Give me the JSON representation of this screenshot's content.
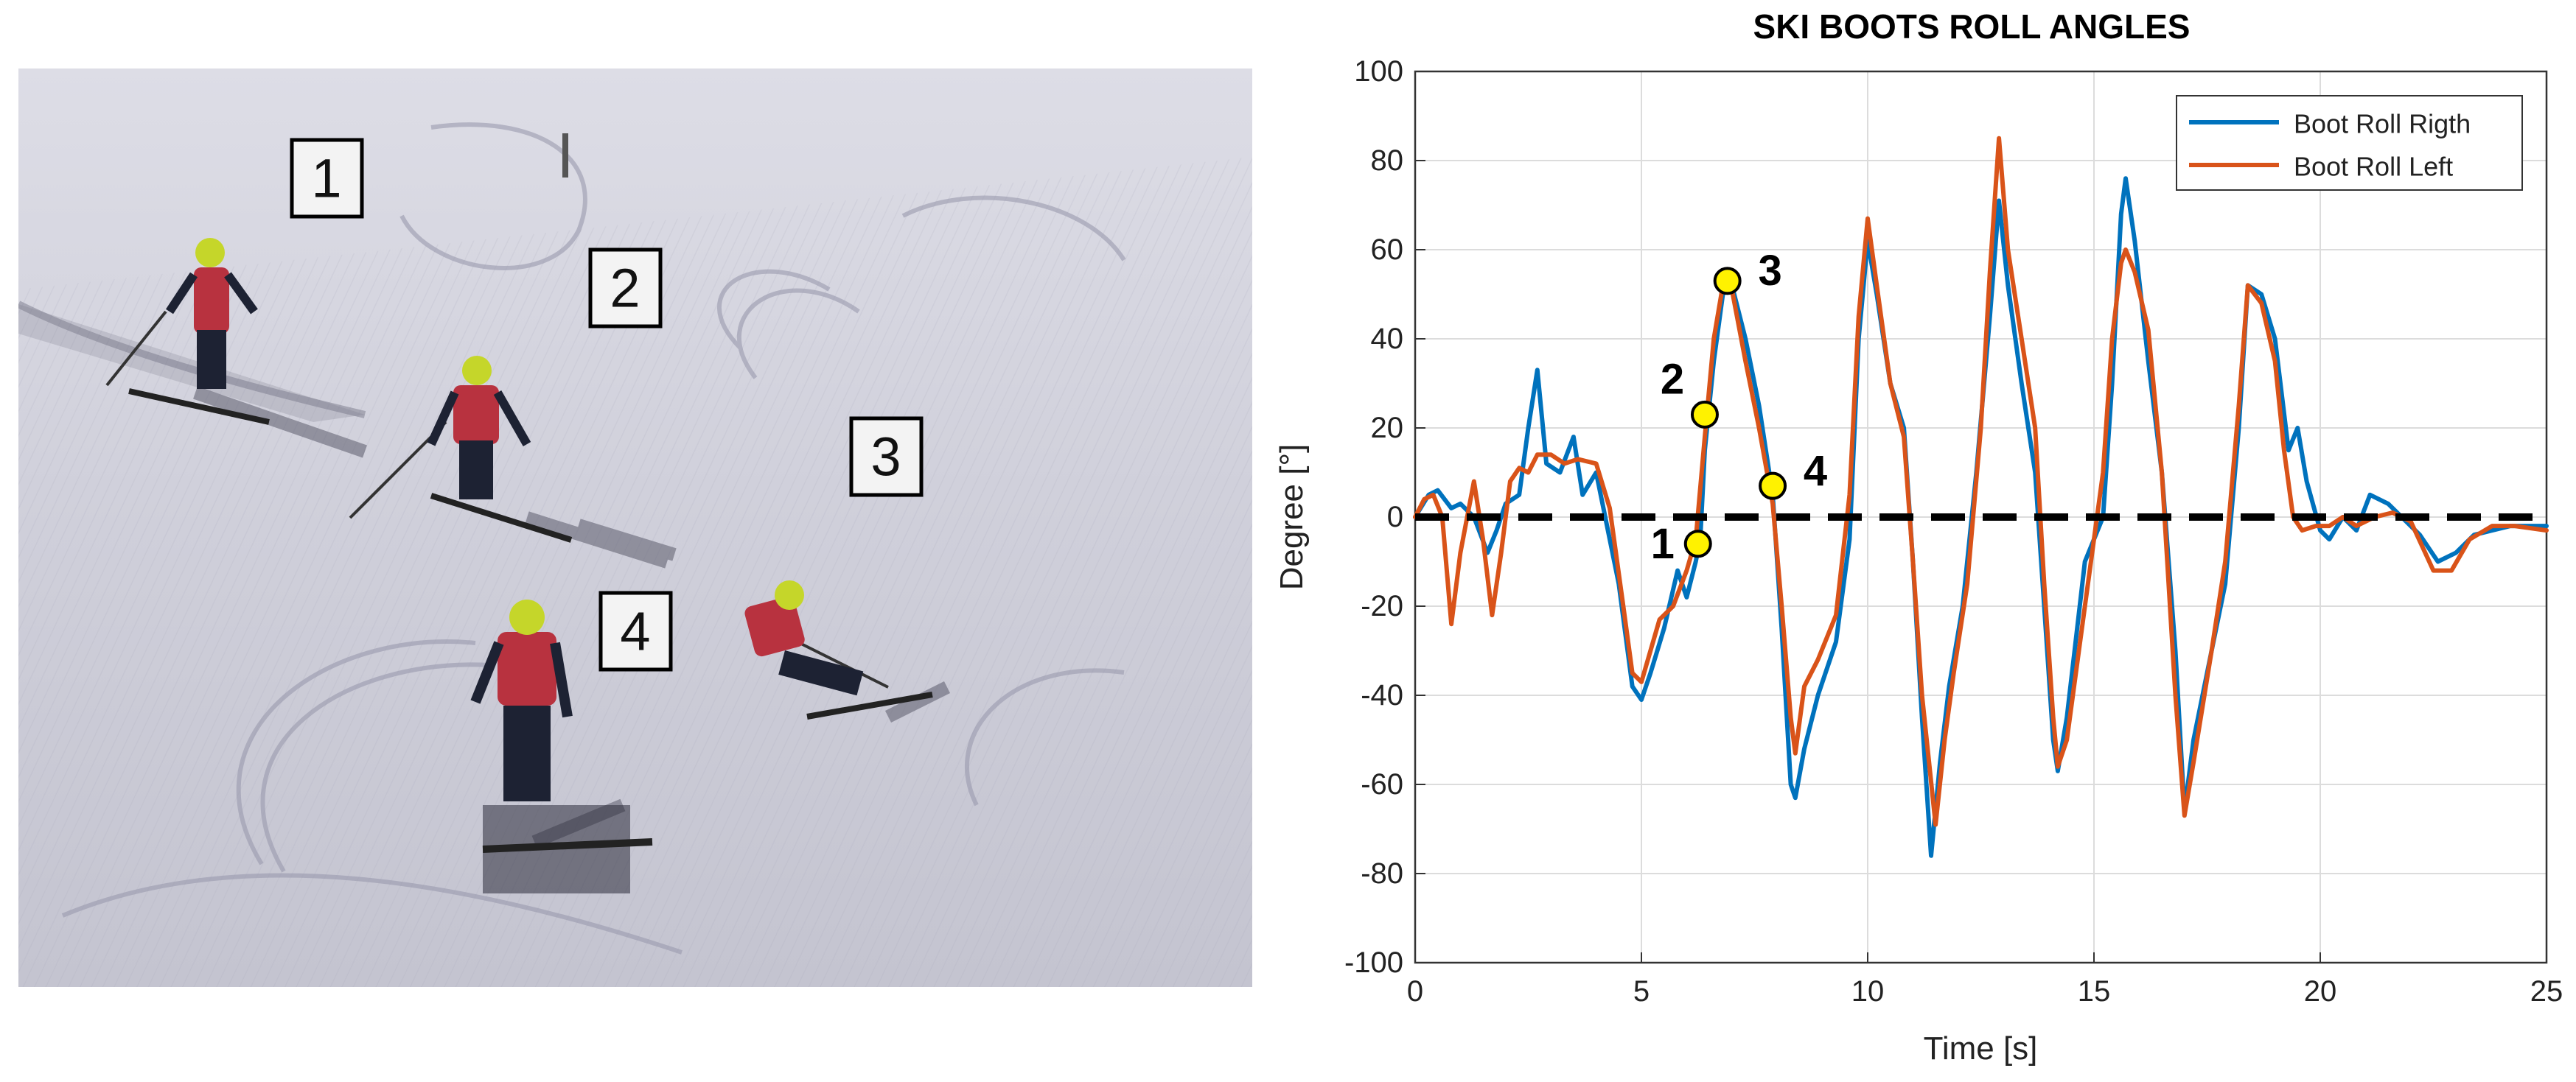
{
  "photo": {
    "markers": [
      {
        "label": "1"
      },
      {
        "label": "2"
      },
      {
        "label": "3"
      },
      {
        "label": "4"
      }
    ]
  },
  "chart_data": {
    "type": "line",
    "title": "SKI BOOTS ROLL ANGLES",
    "xlabel": "Time [s]",
    "ylabel": "Degree [°]",
    "xlim": [
      0,
      25
    ],
    "ylim": [
      -100,
      100
    ],
    "x_ticks": [
      0,
      5,
      10,
      15,
      20,
      25
    ],
    "y_ticks": [
      -100,
      -80,
      -60,
      -40,
      -20,
      0,
      20,
      40,
      60,
      80,
      100
    ],
    "grid": true,
    "legend_position": "top-right",
    "reference_line": {
      "y": 0,
      "style": "dashed",
      "color": "#000000"
    },
    "series": [
      {
        "name": "Boot Roll Rigth",
        "color": "#0072BD",
        "points": [
          [
            0,
            0
          ],
          [
            0.3,
            5
          ],
          [
            0.5,
            6
          ],
          [
            0.8,
            2
          ],
          [
            1,
            3
          ],
          [
            1.3,
            0
          ],
          [
            1.6,
            -8
          ],
          [
            1.8,
            -3
          ],
          [
            2,
            3
          ],
          [
            2.3,
            5
          ],
          [
            2.5,
            20
          ],
          [
            2.7,
            33
          ],
          [
            2.9,
            12
          ],
          [
            3.2,
            10
          ],
          [
            3.5,
            18
          ],
          [
            3.7,
            5
          ],
          [
            4,
            10
          ],
          [
            4.2,
            0
          ],
          [
            4.5,
            -15
          ],
          [
            4.8,
            -38
          ],
          [
            5,
            -41
          ],
          [
            5.2,
            -35
          ],
          [
            5.5,
            -25
          ],
          [
            5.8,
            -12
          ],
          [
            6,
            -18
          ],
          [
            6.2,
            -10
          ],
          [
            6.3,
            -5
          ],
          [
            6.4,
            15
          ],
          [
            6.6,
            35
          ],
          [
            6.8,
            50
          ],
          [
            7,
            52
          ],
          [
            7.3,
            40
          ],
          [
            7.6,
            25
          ],
          [
            7.9,
            5
          ],
          [
            8.1,
            -25
          ],
          [
            8.3,
            -60
          ],
          [
            8.4,
            -63
          ],
          [
            8.6,
            -52
          ],
          [
            8.9,
            -40
          ],
          [
            9.3,
            -28
          ],
          [
            9.6,
            -5
          ],
          [
            9.8,
            40
          ],
          [
            10,
            62
          ],
          [
            10.2,
            50
          ],
          [
            10.5,
            30
          ],
          [
            10.8,
            20
          ],
          [
            11,
            -10
          ],
          [
            11.2,
            -45
          ],
          [
            11.4,
            -76
          ],
          [
            11.6,
            -55
          ],
          [
            11.8,
            -38
          ],
          [
            12.1,
            -20
          ],
          [
            12.4,
            10
          ],
          [
            12.7,
            45
          ],
          [
            12.9,
            71
          ],
          [
            13.1,
            52
          ],
          [
            13.4,
            30
          ],
          [
            13.7,
            10
          ],
          [
            13.9,
            -20
          ],
          [
            14.1,
            -50
          ],
          [
            14.2,
            -57
          ],
          [
            14.4,
            -45
          ],
          [
            14.8,
            -10
          ],
          [
            15.2,
            0
          ],
          [
            15.4,
            30
          ],
          [
            15.6,
            68
          ],
          [
            15.7,
            76
          ],
          [
            15.9,
            62
          ],
          [
            16.2,
            35
          ],
          [
            16.5,
            10
          ],
          [
            16.8,
            -30
          ],
          [
            17,
            -66
          ],
          [
            17.2,
            -50
          ],
          [
            17.6,
            -30
          ],
          [
            17.9,
            -15
          ],
          [
            18.2,
            20
          ],
          [
            18.4,
            52
          ],
          [
            18.7,
            50
          ],
          [
            19,
            40
          ],
          [
            19.3,
            15
          ],
          [
            19.5,
            20
          ],
          [
            19.7,
            8
          ],
          [
            20,
            -3
          ],
          [
            20.2,
            -5
          ],
          [
            20.5,
            0
          ],
          [
            20.8,
            -3
          ],
          [
            21.1,
            5
          ],
          [
            21.5,
            3
          ],
          [
            21.8,
            0
          ],
          [
            22.2,
            -4
          ],
          [
            22.6,
            -10
          ],
          [
            23,
            -8
          ],
          [
            23.4,
            -4
          ],
          [
            23.8,
            -3
          ],
          [
            24.2,
            -2
          ],
          [
            25,
            -2
          ]
        ]
      },
      {
        "name": "Boot Roll Left",
        "color": "#D95319",
        "points": [
          [
            0,
            0
          ],
          [
            0.2,
            4
          ],
          [
            0.4,
            5
          ],
          [
            0.6,
            0
          ],
          [
            0.8,
            -24
          ],
          [
            1,
            -8
          ],
          [
            1.3,
            8
          ],
          [
            1.5,
            -5
          ],
          [
            1.7,
            -22
          ],
          [
            1.9,
            -8
          ],
          [
            2.1,
            8
          ],
          [
            2.3,
            11
          ],
          [
            2.5,
            10
          ],
          [
            2.7,
            14
          ],
          [
            3,
            14
          ],
          [
            3.3,
            12
          ],
          [
            3.6,
            13
          ],
          [
            4,
            12
          ],
          [
            4.3,
            2
          ],
          [
            4.6,
            -20
          ],
          [
            4.8,
            -35
          ],
          [
            5,
            -37
          ],
          [
            5.2,
            -30
          ],
          [
            5.4,
            -23
          ],
          [
            5.7,
            -20
          ],
          [
            6,
            -12
          ],
          [
            6.2,
            -5
          ],
          [
            6.4,
            18
          ],
          [
            6.6,
            40
          ],
          [
            6.8,
            52
          ],
          [
            7,
            51
          ],
          [
            7.3,
            35
          ],
          [
            7.6,
            20
          ],
          [
            7.9,
            3
          ],
          [
            8.1,
            -20
          ],
          [
            8.3,
            -45
          ],
          [
            8.4,
            -53
          ],
          [
            8.6,
            -38
          ],
          [
            8.9,
            -32
          ],
          [
            9.3,
            -22
          ],
          [
            9.6,
            5
          ],
          [
            9.8,
            45
          ],
          [
            10,
            67
          ],
          [
            10.2,
            52
          ],
          [
            10.5,
            30
          ],
          [
            10.8,
            18
          ],
          [
            11,
            -10
          ],
          [
            11.2,
            -40
          ],
          [
            11.5,
            -69
          ],
          [
            11.7,
            -50
          ],
          [
            11.9,
            -35
          ],
          [
            12.2,
            -15
          ],
          [
            12.5,
            20
          ],
          [
            12.7,
            55
          ],
          [
            12.9,
            85
          ],
          [
            13.1,
            60
          ],
          [
            13.4,
            40
          ],
          [
            13.7,
            20
          ],
          [
            13.9,
            -15
          ],
          [
            14.1,
            -45
          ],
          [
            14.2,
            -56
          ],
          [
            14.4,
            -50
          ],
          [
            14.8,
            -20
          ],
          [
            15.2,
            10
          ],
          [
            15.4,
            40
          ],
          [
            15.6,
            57
          ],
          [
            15.7,
            60
          ],
          [
            15.9,
            55
          ],
          [
            16.2,
            42
          ],
          [
            16.5,
            10
          ],
          [
            16.8,
            -40
          ],
          [
            17,
            -67
          ],
          [
            17.2,
            -55
          ],
          [
            17.6,
            -30
          ],
          [
            17.9,
            -10
          ],
          [
            18.2,
            25
          ],
          [
            18.4,
            52
          ],
          [
            18.7,
            48
          ],
          [
            19,
            35
          ],
          [
            19.2,
            15
          ],
          [
            19.4,
            0
          ],
          [
            19.6,
            -3
          ],
          [
            19.9,
            -2
          ],
          [
            20.2,
            -2
          ],
          [
            20.5,
            0
          ],
          [
            20.8,
            -2
          ],
          [
            21.2,
            0
          ],
          [
            21.6,
            1
          ],
          [
            22,
            -1
          ],
          [
            22.5,
            -12
          ],
          [
            22.9,
            -12
          ],
          [
            23.3,
            -5
          ],
          [
            23.8,
            -2
          ],
          [
            24.3,
            -2
          ],
          [
            25,
            -3
          ]
        ]
      }
    ],
    "annotations": [
      {
        "label": "1",
        "x": 6.25,
        "y": -6
      },
      {
        "label": "2",
        "x": 6.4,
        "y": 23
      },
      {
        "label": "3",
        "x": 6.9,
        "y": 53
      },
      {
        "label": "4",
        "x": 7.9,
        "y": 7
      }
    ],
    "marker_color": "#FFF200"
  }
}
